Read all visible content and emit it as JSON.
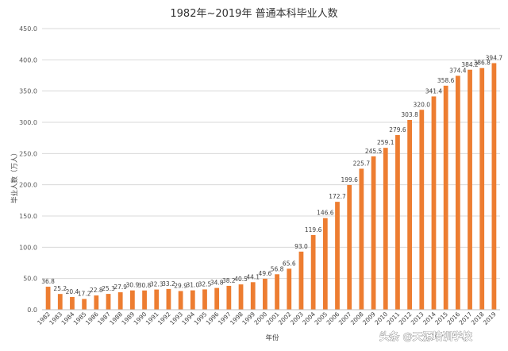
{
  "chart_data": {
    "type": "bar",
    "title": "1982年~2019年 普通本科毕业人数",
    "xlabel": "年份",
    "ylabel": "毕业人数（万人）",
    "ylim": [
      0,
      450
    ],
    "yticks": [
      "0.0",
      "50.0",
      "100.0",
      "150.0",
      "200.0",
      "250.0",
      "300.0",
      "350.0",
      "400.0",
      "450.0"
    ],
    "categories": [
      "1982",
      "1983",
      "1984",
      "1985",
      "1986",
      "1987",
      "1988",
      "1989",
      "1990",
      "1991",
      "1992",
      "1993",
      "1994",
      "1995",
      "1996",
      "1997",
      "1998",
      "1999",
      "2000",
      "2001",
      "2002",
      "2003",
      "2004",
      "2005",
      "2006",
      "2007",
      "2008",
      "2009",
      "2010",
      "2011",
      "2012",
      "2013",
      "2014",
      "2015",
      "2016",
      "2017",
      "2018",
      "2019"
    ],
    "values": [
      36.8,
      25.2,
      20.4,
      17.2,
      22.8,
      25.3,
      27.9,
      30.9,
      30.8,
      32.3,
      33.2,
      29.9,
      31.0,
      32.5,
      34.8,
      38.2,
      40.5,
      44.1,
      49.6,
      56.8,
      65.6,
      93.0,
      119.6,
      146.6,
      172.7,
      199.6,
      225.7,
      245.5,
      259.1,
      279.6,
      303.8,
      320.0,
      341.4,
      358.6,
      374.4,
      384.2,
      386.8,
      394.7
    ],
    "labels": [
      "36.8",
      "25.2",
      "20.4",
      "17.2",
      "22.8",
      "25.3",
      "27.9",
      "30.9",
      "30.8",
      "32.3",
      "33.2",
      "29.9",
      "31.0",
      "32.5",
      "34.8",
      "38.2",
      "40.5",
      "44.1",
      "49.6",
      "56.8",
      "65.6",
      "93.0",
      "119.6",
      "146.6",
      "172.7",
      "199.6",
      "225.7",
      "245.5",
      "259.1",
      "279.6",
      "303.8",
      "320.0",
      "341.4",
      "358.6",
      "374.4",
      "384.2",
      "386.8",
      "394.7"
    ],
    "bar_color": "#ED7D31",
    "grid": true,
    "legend": "none"
  },
  "watermark": "头条 @天源培训学校"
}
